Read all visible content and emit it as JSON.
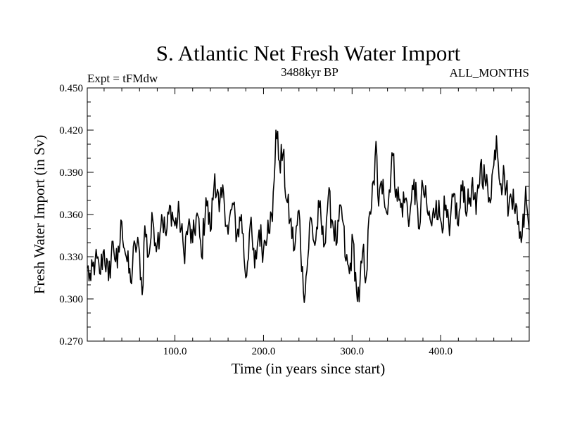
{
  "chart_data": {
    "type": "line",
    "title": "S. Atlantic Net Fresh Water Import",
    "subtitle_left": "Expt = tFMdw",
    "subtitle_center": "3488kyr BP",
    "subtitle_right": "ALL_MONTHS",
    "xlabel": "Time (in years since start)",
    "ylabel": "Fresh Water Import (in Sv)",
    "xlim": [
      1,
      500
    ],
    "ylim": [
      0.27,
      0.45
    ],
    "xticks": [
      100,
      200,
      300,
      400
    ],
    "xtick_labels": [
      "100.0",
      "200.0",
      "300.0",
      "400.0"
    ],
    "yticks": [
      0.27,
      0.3,
      0.33,
      0.36,
      0.39,
      0.42,
      0.45
    ],
    "ytick_labels": [
      "0.270",
      "0.300",
      "0.330",
      "0.360",
      "0.390",
      "0.420",
      "0.450"
    ],
    "grid": false,
    "series": [
      {
        "name": "Fresh Water Import",
        "x": [
          1,
          5,
          10,
          15,
          20,
          25,
          30,
          35,
          40,
          45,
          50,
          55,
          60,
          63,
          66,
          70,
          75,
          80,
          85,
          90,
          95,
          100,
          105,
          110,
          115,
          120,
          125,
          130,
          135,
          140,
          145,
          150,
          155,
          160,
          165,
          170,
          175,
          180,
          185,
          190,
          195,
          200,
          205,
          210,
          214,
          218,
          222,
          226,
          230,
          235,
          240,
          245,
          249,
          253,
          258,
          263,
          268,
          273,
          278,
          283,
          288,
          293,
          297,
          301,
          305,
          308,
          312,
          316,
          320,
          325,
          327,
          330,
          335,
          340,
          345,
          350,
          355,
          360,
          365,
          370,
          375,
          380,
          385,
          390,
          395,
          400,
          405,
          410,
          415,
          420,
          425,
          430,
          435,
          440,
          445,
          450,
          455,
          460,
          463,
          468,
          472,
          477,
          482,
          487,
          492,
          496,
          500
        ],
        "y": [
          0.322,
          0.313,
          0.328,
          0.318,
          0.335,
          0.313,
          0.341,
          0.322,
          0.355,
          0.33,
          0.312,
          0.339,
          0.333,
          0.303,
          0.352,
          0.33,
          0.356,
          0.339,
          0.36,
          0.345,
          0.366,
          0.352,
          0.36,
          0.333,
          0.352,
          0.34,
          0.361,
          0.33,
          0.372,
          0.348,
          0.389,
          0.362,
          0.375,
          0.346,
          0.368,
          0.345,
          0.36,
          0.315,
          0.353,
          0.322,
          0.349,
          0.335,
          0.356,
          0.355,
          0.42,
          0.398,
          0.403,
          0.37,
          0.356,
          0.335,
          0.363,
          0.305,
          0.32,
          0.358,
          0.338,
          0.365,
          0.337,
          0.372,
          0.355,
          0.34,
          0.365,
          0.327,
          0.318,
          0.342,
          0.306,
          0.298,
          0.334,
          0.316,
          0.362,
          0.381,
          0.412,
          0.366,
          0.385,
          0.36,
          0.404,
          0.378,
          0.365,
          0.371,
          0.358,
          0.385,
          0.35,
          0.38,
          0.362,
          0.352,
          0.37,
          0.356,
          0.363,
          0.345,
          0.375,
          0.352,
          0.384,
          0.363,
          0.38,
          0.36,
          0.396,
          0.385,
          0.372,
          0.395,
          0.416,
          0.382,
          0.388,
          0.365,
          0.378,
          0.353,
          0.345,
          0.38,
          0.349
        ]
      }
    ]
  }
}
